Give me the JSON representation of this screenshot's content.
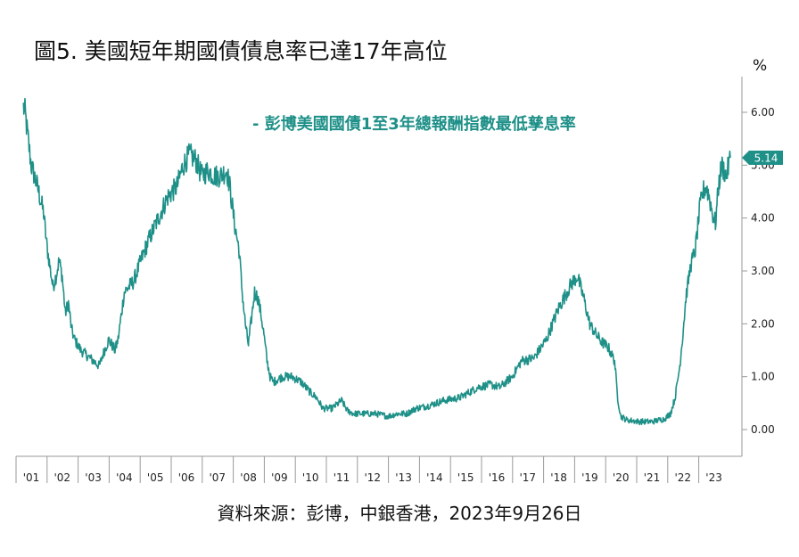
{
  "header": {
    "title": "圖5. 美國短年期國債債息率已達17年高位",
    "unit": "%"
  },
  "footer": {
    "source": "資料來源：彭博，中銀香港，2023年9月26日"
  },
  "colors": {
    "series": "#1e9088",
    "axis": "#9a9a9a"
  },
  "chart_data": {
    "type": "line",
    "title": "圖5. 美國短年期國債債息率已達17年高位",
    "ylabel": "%",
    "xlabel": "",
    "ylim": [
      -0.5,
      6.6
    ],
    "y_ticks": [
      0,
      1,
      2,
      3,
      4,
      5,
      6
    ],
    "y_tick_labels": [
      "0.00",
      "1.00",
      "2.00",
      "3.00",
      "4.00",
      "5.00",
      "6.00"
    ],
    "x_tick_labels": [
      "'01",
      "'02",
      "'03",
      "'04",
      "'05",
      "'06",
      "'07",
      "'08",
      "'09",
      "'10",
      "'11",
      "'12",
      "'13",
      "'14",
      "'15",
      "'16",
      "'17",
      "'18",
      "'19",
      "'20",
      "'21",
      "'22",
      "'23"
    ],
    "grid": false,
    "legend_position": "top",
    "last_value_label": "5.14",
    "series": [
      {
        "name": "- 彭博美國國債1至3年總報酬指數最低孳息率",
        "x": [
          2000.95,
          2001.0,
          2001.2,
          2001.4,
          2001.6,
          2001.7,
          2001.9,
          2002.0,
          2002.1,
          2002.2,
          2002.3,
          2002.4,
          2002.5,
          2002.6,
          2002.8,
          2003.0,
          2003.2,
          2003.4,
          2003.5,
          2003.7,
          2003.9,
          2004.0,
          2004.2,
          2004.5,
          2004.8,
          2005.0,
          2005.3,
          2005.6,
          2005.9,
          2006.1,
          2006.3,
          2006.5,
          2006.7,
          2006.9,
          2007.1,
          2007.3,
          2007.5,
          2007.6,
          2007.75,
          2007.9,
          2008.0,
          2008.1,
          2008.2,
          2008.4,
          2008.5,
          2008.6,
          2008.7,
          2008.8,
          2008.9,
          2009.0,
          2009.3,
          2009.6,
          2009.9,
          2010.2,
          2010.4,
          2010.6,
          2010.9,
          2011.2,
          2011.4,
          2011.6,
          2011.9,
          2012.3,
          2012.7,
          2013.0,
          2013.3,
          2013.6,
          2014.0,
          2014.5,
          2015.0,
          2015.3,
          2015.6,
          2016.0,
          2016.3,
          2016.7,
          2017.0,
          2017.4,
          2017.8,
          2018.2,
          2018.6,
          2018.8,
          2019.0,
          2019.2,
          2019.4,
          2019.6,
          2019.8,
          2020.0,
          2020.1,
          2020.2,
          2020.4,
          2020.8,
          2021.2,
          2021.6,
          2021.8,
          2021.95,
          2022.1,
          2022.2,
          2022.3,
          2022.45,
          2022.6,
          2022.75,
          2022.85,
          2022.95,
          2023.05,
          2023.15,
          2023.25,
          2023.35,
          2023.45,
          2023.6,
          2023.73
        ],
        "values": [
          6.1,
          6.0,
          5.0,
          4.6,
          4.1,
          3.5,
          2.7,
          2.9,
          3.2,
          2.9,
          2.2,
          2.4,
          1.9,
          1.7,
          1.5,
          1.4,
          1.3,
          1.2,
          1.4,
          1.7,
          1.5,
          1.7,
          2.6,
          2.8,
          3.3,
          3.6,
          4.0,
          4.4,
          4.6,
          5.0,
          5.2,
          5.1,
          4.8,
          4.9,
          4.8,
          4.8,
          4.9,
          4.6,
          3.9,
          3.4,
          2.6,
          2.0,
          1.6,
          2.6,
          2.5,
          2.2,
          1.8,
          1.3,
          1.0,
          0.9,
          1.0,
          1.0,
          0.9,
          0.7,
          0.6,
          0.4,
          0.4,
          0.55,
          0.35,
          0.3,
          0.3,
          0.3,
          0.25,
          0.3,
          0.3,
          0.4,
          0.45,
          0.55,
          0.6,
          0.7,
          0.8,
          0.85,
          0.8,
          1.0,
          1.3,
          1.35,
          1.7,
          2.3,
          2.75,
          2.9,
          2.5,
          2.0,
          1.8,
          1.65,
          1.55,
          1.3,
          0.6,
          0.25,
          0.18,
          0.15,
          0.15,
          0.2,
          0.3,
          0.6,
          1.2,
          1.8,
          2.5,
          3.1,
          3.4,
          4.2,
          4.5,
          4.6,
          4.4,
          4.1,
          3.9,
          4.6,
          5.0,
          4.8,
          5.14
        ]
      }
    ]
  }
}
